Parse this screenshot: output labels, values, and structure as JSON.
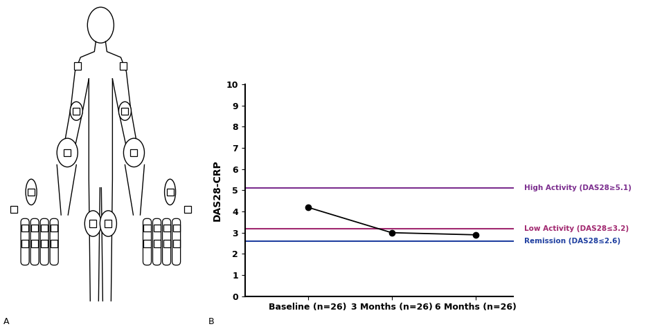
{
  "panel_labels": [
    "A",
    "B"
  ],
  "chart_data": {
    "type": "line",
    "y_label": "DAS28-CRP",
    "categories": [
      "Baseline (n=26)",
      "3 Months (n=26)",
      "6 Months (n=26)"
    ],
    "values": [
      4.2,
      3.0,
      2.9
    ],
    "color": "#000000",
    "marker": "o",
    "line_style": "solid",
    "ylim": [
      0,
      10
    ],
    "yticks": [
      0,
      1,
      2,
      3,
      4,
      5,
      6,
      7,
      8,
      9,
      10
    ],
    "reference_lines": [
      {
        "value": 5.1,
        "label": "High Activity (DAS28≥5.1)",
        "color": "#7b2d8e"
      },
      {
        "value": 3.2,
        "label": "Low Activity (DAS28≤3.2)",
        "color": "#a0266e"
      },
      {
        "value": 2.6,
        "label": "Remission (DAS28≤2.6)",
        "color": "#1f3fa0"
      }
    ]
  }
}
